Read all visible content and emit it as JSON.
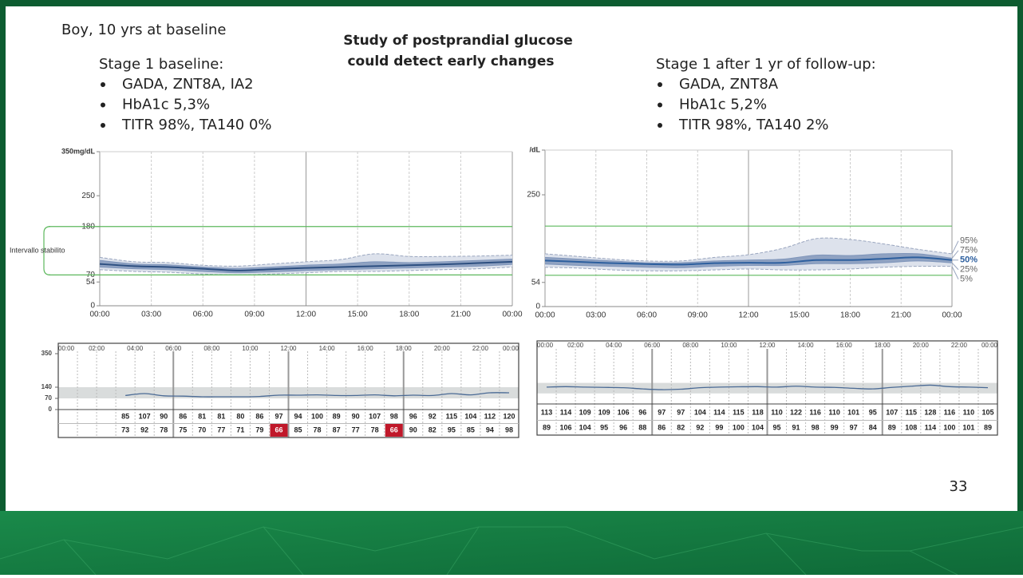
{
  "slide": {
    "patient": "Boy, 10 yrs at baseline",
    "headline": [
      "Study of postprandial glucose",
      "could detect early changes"
    ],
    "panels": [
      {
        "heading": "Stage 1 baseline:",
        "bullets": [
          "GADA, ZNT8A, IA2",
          "HbA1c 5,3%",
          "TITR 98%, TA140 0%"
        ]
      },
      {
        "heading": "Stage 1 after 1 yr of follow-up:",
        "bullets": [
          "GADA, ZNT8A",
          "HbA1c 5,2%",
          "TITR 98%, TA140 2%"
        ]
      }
    ],
    "page_number": "33"
  },
  "chart_data": [
    {
      "type": "agp",
      "x": [
        0,
        2,
        4,
        6,
        8,
        10,
        12,
        14,
        16,
        18,
        20,
        22,
        24
      ],
      "xlim": [
        0,
        24
      ],
      "xticks": [
        {
          "value": 0,
          "label": "00:00"
        },
        {
          "value": 3,
          "label": "03:00"
        },
        {
          "value": 6,
          "label": "06:00"
        },
        {
          "value": 9,
          "label": "09:00"
        },
        {
          "value": 12,
          "label": "12:00"
        },
        {
          "value": 15,
          "label": "15:00"
        },
        {
          "value": 18,
          "label": "18:00"
        },
        {
          "value": 21,
          "label": "21:00"
        },
        {
          "value": 24,
          "label": "00:00"
        }
      ],
      "ylim": [
        0,
        350
      ],
      "yticks": [
        0,
        54,
        70,
        180,
        250,
        {
          "value": 350,
          "label": "350mg/dL"
        }
      ],
      "target_range": [
        70,
        180
      ],
      "target_label": "Intervallo stabilito",
      "band_colors": [
        "#dde2ec",
        "#8fa2c2"
      ],
      "series": [
        {
          "color": "#9aa6bf",
          "values": [
            82,
            78,
            76,
            72,
            70,
            72,
            75,
            78,
            78,
            80,
            82,
            84,
            88
          ]
        },
        {
          "color": "#7f95ba",
          "values": [
            88,
            84,
            82,
            78,
            75,
            77,
            80,
            82,
            84,
            86,
            88,
            90,
            94
          ]
        },
        {
          "color": "#2d4f80",
          "values": [
            95,
            90,
            88,
            84,
            80,
            83,
            86,
            88,
            90,
            92,
            94,
            97,
            100
          ]
        },
        {
          "color": "#7f95ba",
          "values": [
            103,
            95,
            93,
            88,
            85,
            88,
            92,
            95,
            100,
            98,
            100,
            103,
            106
          ]
        },
        {
          "color": "#9aa6bf",
          "values": [
            110,
            100,
            98,
            92,
            90,
            95,
            100,
            105,
            118,
            112,
            112,
            113,
            115
          ]
        }
      ]
    },
    {
      "type": "agp",
      "x": [
        0,
        2,
        4,
        6,
        8,
        10,
        12,
        14,
        16,
        18,
        20,
        22,
        24
      ],
      "xlim": [
        0,
        24
      ],
      "xticks": [
        {
          "value": 0,
          "label": "00:00"
        },
        {
          "value": 3,
          "label": "03:00"
        },
        {
          "value": 6,
          "label": "06:00"
        },
        {
          "value": 9,
          "label": "09:00"
        },
        {
          "value": 12,
          "label": "12:00"
        },
        {
          "value": 15,
          "label": "15:00"
        },
        {
          "value": 18,
          "label": "18:00"
        },
        {
          "value": 21,
          "label": "21:00"
        },
        {
          "value": 24,
          "label": "00:00"
        }
      ],
      "ylim": [
        0,
        350
      ],
      "yticks": [
        0,
        54,
        250,
        {
          "value": 350,
          "label": "/dL"
        }
      ],
      "target_range": [
        70,
        180
      ],
      "band_colors": [
        "#dde2ec",
        "#8fa2c2"
      ],
      "series": [
        {
          "name": "5%",
          "color": "#9aa6bf",
          "values": [
            88,
            86,
            82,
            80,
            80,
            82,
            84,
            82,
            82,
            84,
            88,
            90,
            90
          ]
        },
        {
          "name": "25%",
          "color": "#7f95ba",
          "values": [
            95,
            92,
            90,
            88,
            87,
            90,
            92,
            92,
            96,
            96,
            98,
            102,
            98
          ]
        },
        {
          "name": "50%",
          "color": "#2d5f9e",
          "values": [
            103,
            100,
            97,
            95,
            94,
            97,
            98,
            98,
            104,
            104,
            107,
            110,
            104
          ]
        },
        {
          "name": "75%",
          "color": "#7f95ba",
          "values": [
            110,
            106,
            102,
            98,
            98,
            102,
            104,
            106,
            115,
            114,
            118,
            118,
            108
          ]
        },
        {
          "name": "95%",
          "color": "#9aa6bf",
          "values": [
            118,
            112,
            106,
            102,
            102,
            110,
            116,
            130,
            152,
            150,
            140,
            128,
            118
          ]
        }
      ]
    },
    {
      "type": "daily",
      "x": [
        3,
        4,
        5,
        6,
        7,
        8,
        9,
        10,
        11,
        12,
        13,
        14,
        15,
        16,
        17,
        18,
        19,
        20,
        21,
        22,
        23
      ],
      "xlim": [
        0,
        24
      ],
      "xticks": [
        {
          "value": 0,
          "label": "00:00"
        },
        {
          "value": 2,
          "label": "02:00"
        },
        {
          "value": 4,
          "label": "04:00"
        },
        {
          "value": 6,
          "label": "06:00"
        },
        {
          "value": 8,
          "label": "08:00"
        },
        {
          "value": 10,
          "label": "10:00"
        },
        {
          "value": 12,
          "label": "12:00"
        },
        {
          "value": 14,
          "label": "14:00"
        },
        {
          "value": 16,
          "label": "16:00"
        },
        {
          "value": 18,
          "label": "18:00"
        },
        {
          "value": 20,
          "label": "20:00"
        },
        {
          "value": 22,
          "label": "22:00"
        },
        {
          "value": 24,
          "label": "00:00"
        }
      ],
      "ylim": [
        0,
        350
      ],
      "yticks": [
        0,
        70,
        140,
        350
      ],
      "target_band": [
        70,
        140
      ],
      "series": [
        {
          "color": "#4a6a95",
          "values": [
            88,
            100,
            86,
            84,
            80,
            80,
            80,
            82,
            90,
            90,
            92,
            88,
            88,
            92,
            86,
            90,
            88,
            100,
            92,
            105,
            105
          ]
        }
      ],
      "table": {
        "rows": [
          [
            85,
            107,
            90,
            86,
            81,
            81,
            80,
            86,
            97,
            94,
            100,
            89,
            90,
            107,
            98,
            96,
            92,
            115,
            104,
            112,
            120
          ],
          [
            73,
            92,
            78,
            75,
            70,
            77,
            71,
            79,
            66,
            85,
            78,
            87,
            77,
            78,
            66,
            90,
            82,
            95,
            85,
            94,
            98
          ]
        ]
      },
      "highlight_below": 70,
      "highlight_color": "#c0182a"
    },
    {
      "type": "daily",
      "x": [
        0,
        1,
        2,
        3,
        4,
        5,
        6,
        7,
        8,
        9,
        10,
        11,
        12,
        13,
        14,
        15,
        16,
        17,
        18,
        19,
        20,
        21,
        22,
        23
      ],
      "xlim": [
        0,
        24
      ],
      "xticks": [
        {
          "value": 0,
          "label": "00:00"
        },
        {
          "value": 2,
          "label": "02:00"
        },
        {
          "value": 4,
          "label": "04:00"
        },
        {
          "value": 6,
          "label": "06:00"
        },
        {
          "value": 8,
          "label": "08:00"
        },
        {
          "value": 10,
          "label": "10:00"
        },
        {
          "value": 12,
          "label": "12:00"
        },
        {
          "value": 14,
          "label": "14:00"
        },
        {
          "value": 16,
          "label": "16:00"
        },
        {
          "value": 18,
          "label": "18:00"
        },
        {
          "value": 20,
          "label": "20:00"
        },
        {
          "value": 22,
          "label": "22:00"
        },
        {
          "value": 24,
          "label": "00:00"
        }
      ],
      "ylim": [
        0,
        350
      ],
      "target_band": [
        70,
        140
      ],
      "series": [
        {
          "color": "#4a6a95",
          "values": [
            112,
            115,
            112,
            110,
            108,
            100,
            95,
            98,
            108,
            112,
            114,
            115,
            112,
            118,
            112,
            110,
            104,
            100,
            110,
            118,
            125,
            115,
            112,
            108
          ]
        }
      ],
      "table": {
        "rows": [
          [
            113,
            114,
            109,
            109,
            106,
            96,
            97,
            97,
            104,
            114,
            115,
            118,
            110,
            122,
            116,
            110,
            101,
            95,
            107,
            115,
            128,
            116,
            110,
            105
          ],
          [
            89,
            106,
            104,
            95,
            96,
            88,
            86,
            82,
            92,
            99,
            100,
            104,
            95,
            91,
            98,
            99,
            97,
            84,
            89,
            108,
            114,
            100,
            101,
            89
          ]
        ]
      }
    }
  ]
}
